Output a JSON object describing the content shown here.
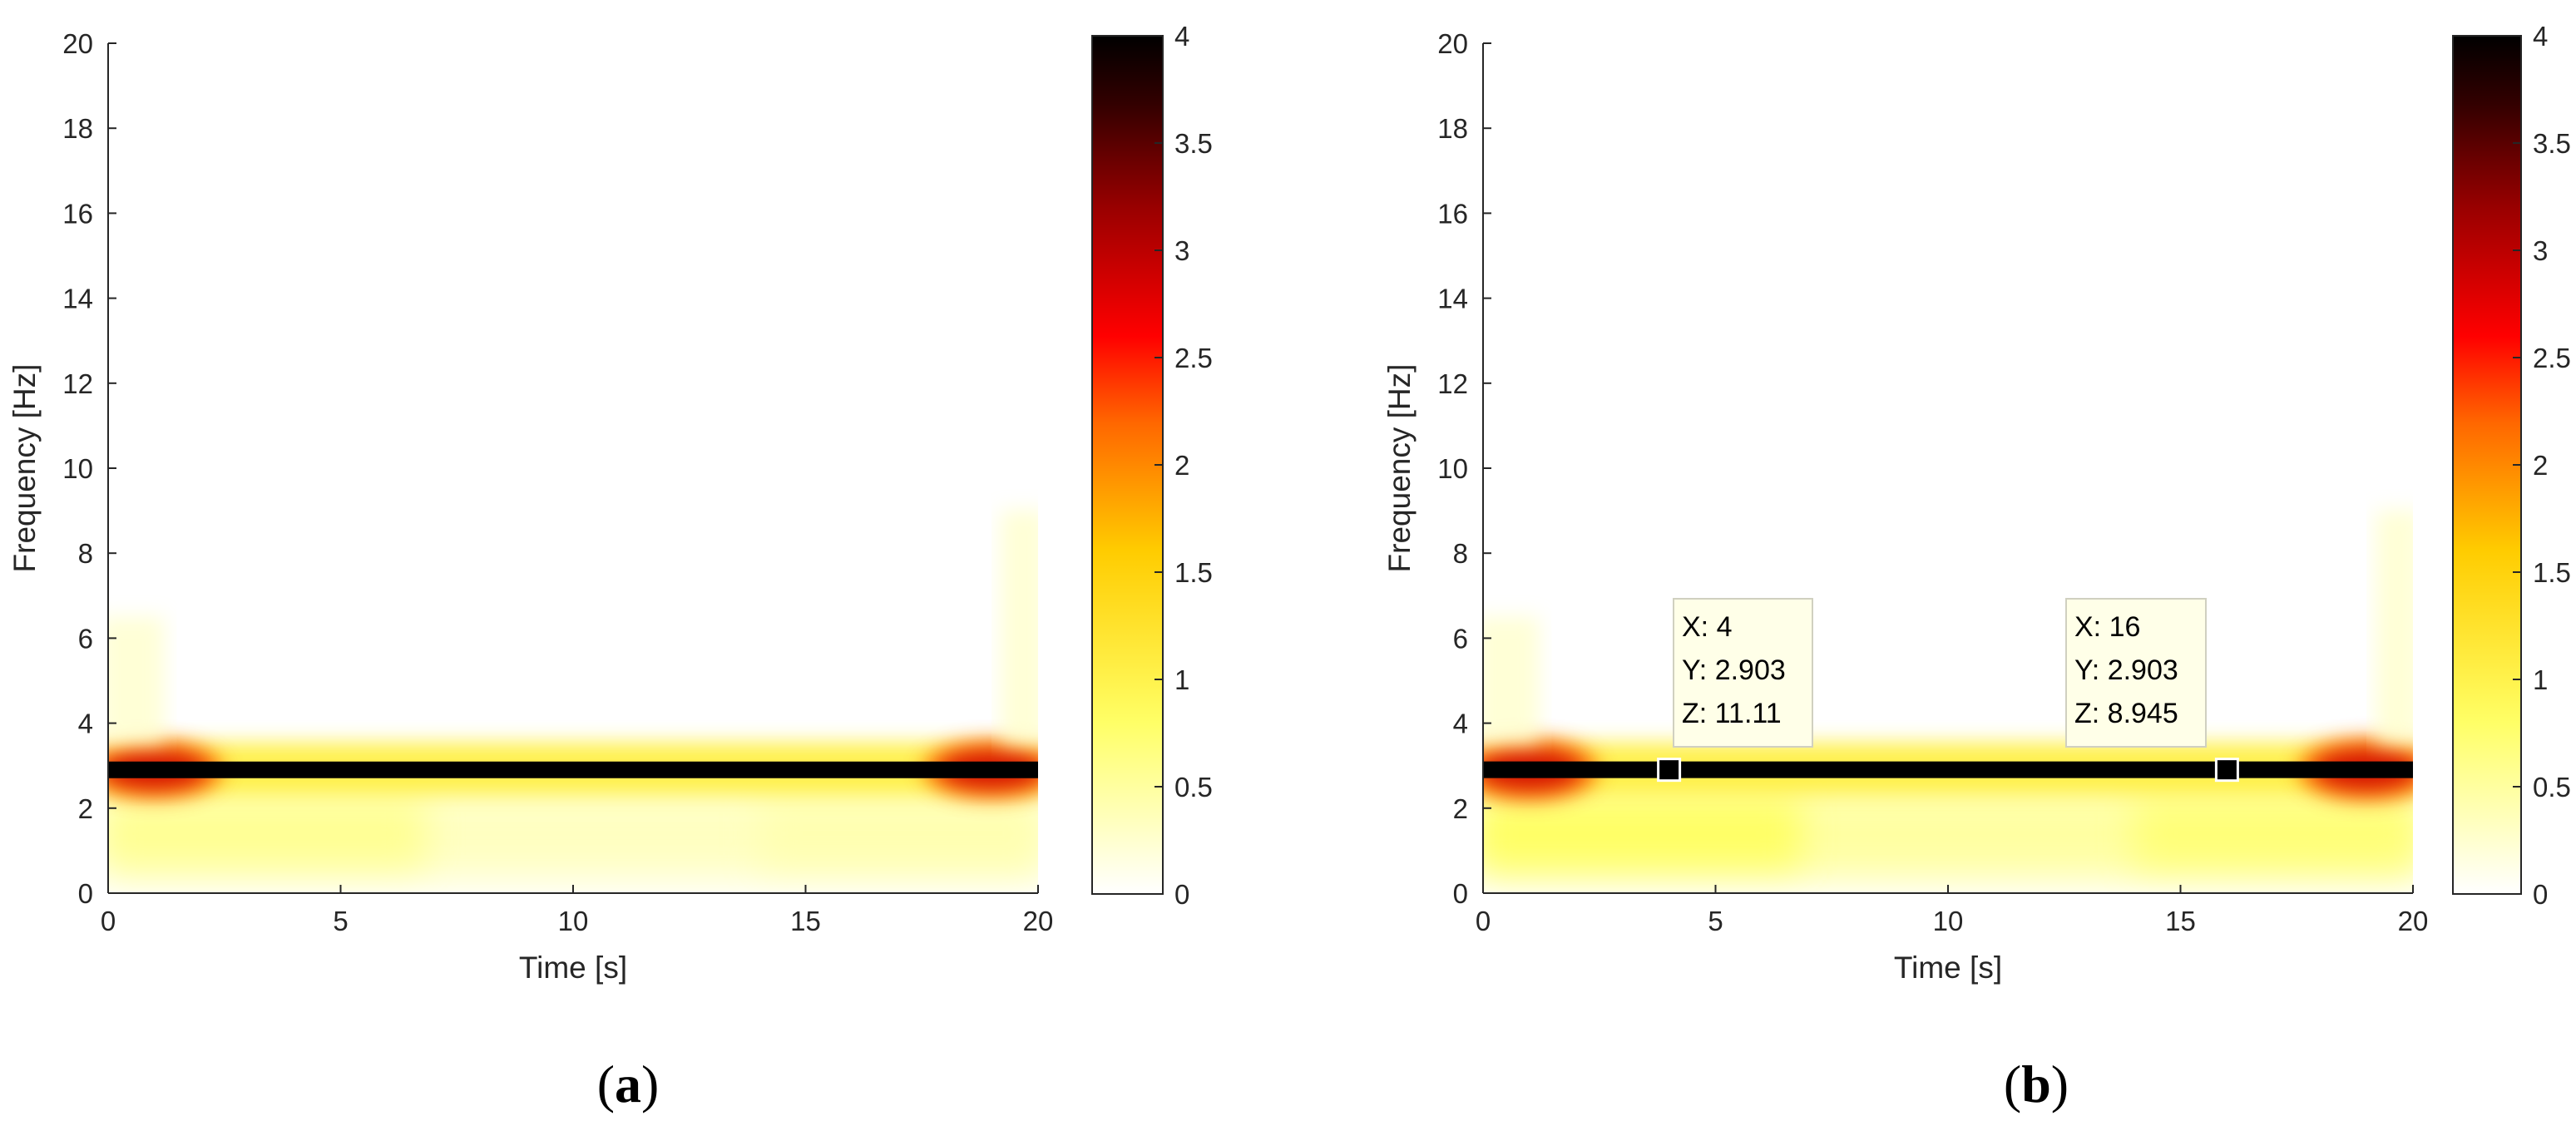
{
  "chart_data": [
    {
      "type": "heatmap",
      "panel_label": "a",
      "xlabel": "Time [s]",
      "ylabel": "Frequency [Hz]",
      "xlim": [
        0,
        20
      ],
      "ylim": [
        0,
        20
      ],
      "xticks": [
        0,
        5,
        10,
        15,
        20
      ],
      "yticks": [
        0,
        2,
        4,
        6,
        8,
        10,
        12,
        14,
        16,
        18,
        20
      ],
      "colormap": "hot (reversed)",
      "colorbar": {
        "range": [
          0,
          4
        ],
        "ticks": [
          "0",
          "0.5",
          "1",
          "1.5",
          "2",
          "2.5",
          "3",
          "3.5",
          "4"
        ]
      },
      "ridge": {
        "frequency": 2.9,
        "t_start": 0,
        "t_end": 20
      },
      "features": [
        {
          "t": [
            0,
            2
          ],
          "f": [
            2.3,
            3.7
          ],
          "value": 3.0,
          "desc": "edge spread at start"
        },
        {
          "t": [
            18,
            20
          ],
          "f": [
            2.3,
            3.7
          ],
          "value": 3.0,
          "desc": "edge spread at end"
        },
        {
          "t": [
            0,
            20
          ],
          "f": [
            0.3,
            2.5
          ],
          "value": 0.3,
          "desc": "low frequency leakage"
        }
      ],
      "datatips": []
    },
    {
      "type": "heatmap",
      "panel_label": "b",
      "xlabel": "Time [s]",
      "ylabel": "Frequency [Hz]",
      "xlim": [
        0,
        20
      ],
      "ylim": [
        0,
        20
      ],
      "xticks": [
        0,
        5,
        10,
        15,
        20
      ],
      "yticks": [
        0,
        2,
        4,
        6,
        8,
        10,
        12,
        14,
        16,
        18,
        20
      ],
      "colormap": "hot (reversed)",
      "colorbar": {
        "range": [
          0,
          4
        ],
        "ticks": [
          "0",
          "0.5",
          "1",
          "1.5",
          "2",
          "2.5",
          "3",
          "3.5",
          "4"
        ]
      },
      "ridge": {
        "frequency": 2.903,
        "t_start": 0,
        "t_end": 20
      },
      "features": [
        {
          "t": [
            0,
            2
          ],
          "f": [
            2.3,
            3.8
          ],
          "value": 3.2,
          "desc": "edge spread at start"
        },
        {
          "t": [
            18,
            20
          ],
          "f": [
            2.3,
            3.8
          ],
          "value": 3.2,
          "desc": "edge spread at end"
        },
        {
          "t": [
            0,
            20
          ],
          "f": [
            0.3,
            2.5
          ],
          "value": 0.6,
          "desc": "low frequency leakage"
        }
      ],
      "datatips": [
        {
          "x": 4,
          "y": 2.903,
          "lines": [
            "X: 4",
            "Y: 2.903",
            "Z: 11.11"
          ]
        },
        {
          "x": 16,
          "y": 2.903,
          "lines": [
            "X: 16",
            "Y: 2.903",
            "Z: 8.945"
          ]
        }
      ]
    }
  ],
  "colors": {
    "axis_text": "#262626",
    "axis_line": "#262626",
    "colormap_stops": [
      "#ffffff",
      "#ffff00",
      "#ff9900",
      "#ff0000",
      "#990000",
      "#000000"
    ]
  }
}
